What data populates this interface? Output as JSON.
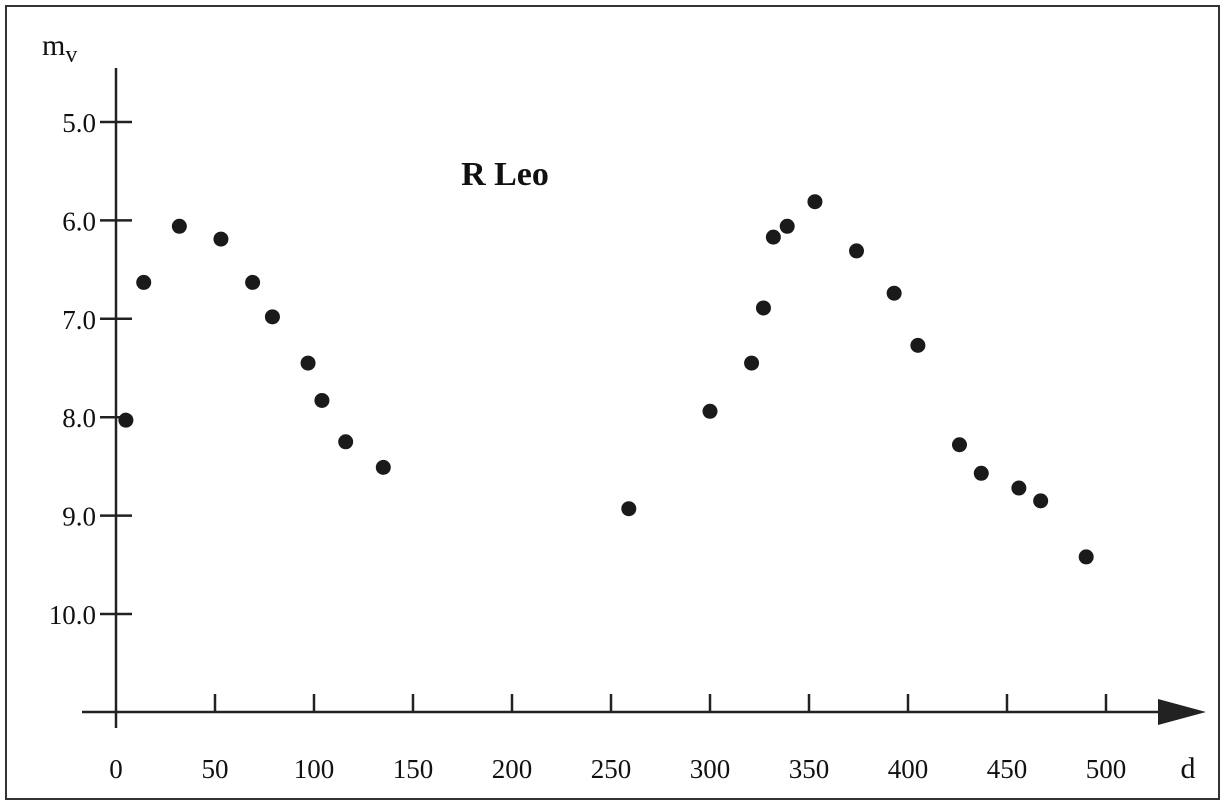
{
  "chart_data": {
    "type": "scatter",
    "title": "R Leo",
    "ylabel": "m",
    "ylabel_subscript": "v",
    "xlabel": "d",
    "xlim": [
      0,
      550
    ],
    "ylim": [
      4.5,
      11.0
    ],
    "y_inverted": true,
    "grid": false,
    "xticks": [
      0,
      50,
      100,
      150,
      200,
      250,
      300,
      350,
      400,
      450,
      500
    ],
    "xtick_labels": [
      "0",
      "50",
      "100",
      "150",
      "200",
      "250",
      "300",
      "350",
      "400",
      "450",
      "500"
    ],
    "yticks": [
      5.0,
      6.0,
      7.0,
      8.0,
      9.0,
      10.0
    ],
    "ytick_labels": [
      "5.0",
      "6.0",
      "7.0",
      "8.0",
      "9.0",
      "10.0"
    ],
    "x": [
      5,
      14,
      32,
      53,
      69,
      79,
      97,
      104,
      116,
      135,
      259,
      300,
      321,
      327,
      332,
      339,
      353,
      374,
      393,
      405,
      426,
      437,
      456,
      467,
      490
    ],
    "y": [
      8.03,
      6.63,
      6.06,
      6.19,
      6.63,
      6.98,
      7.45,
      7.83,
      8.25,
      8.51,
      8.93,
      7.94,
      7.45,
      6.89,
      6.17,
      6.06,
      5.81,
      6.31,
      6.74,
      7.27,
      8.28,
      8.57,
      8.72,
      8.85,
      9.42
    ]
  }
}
